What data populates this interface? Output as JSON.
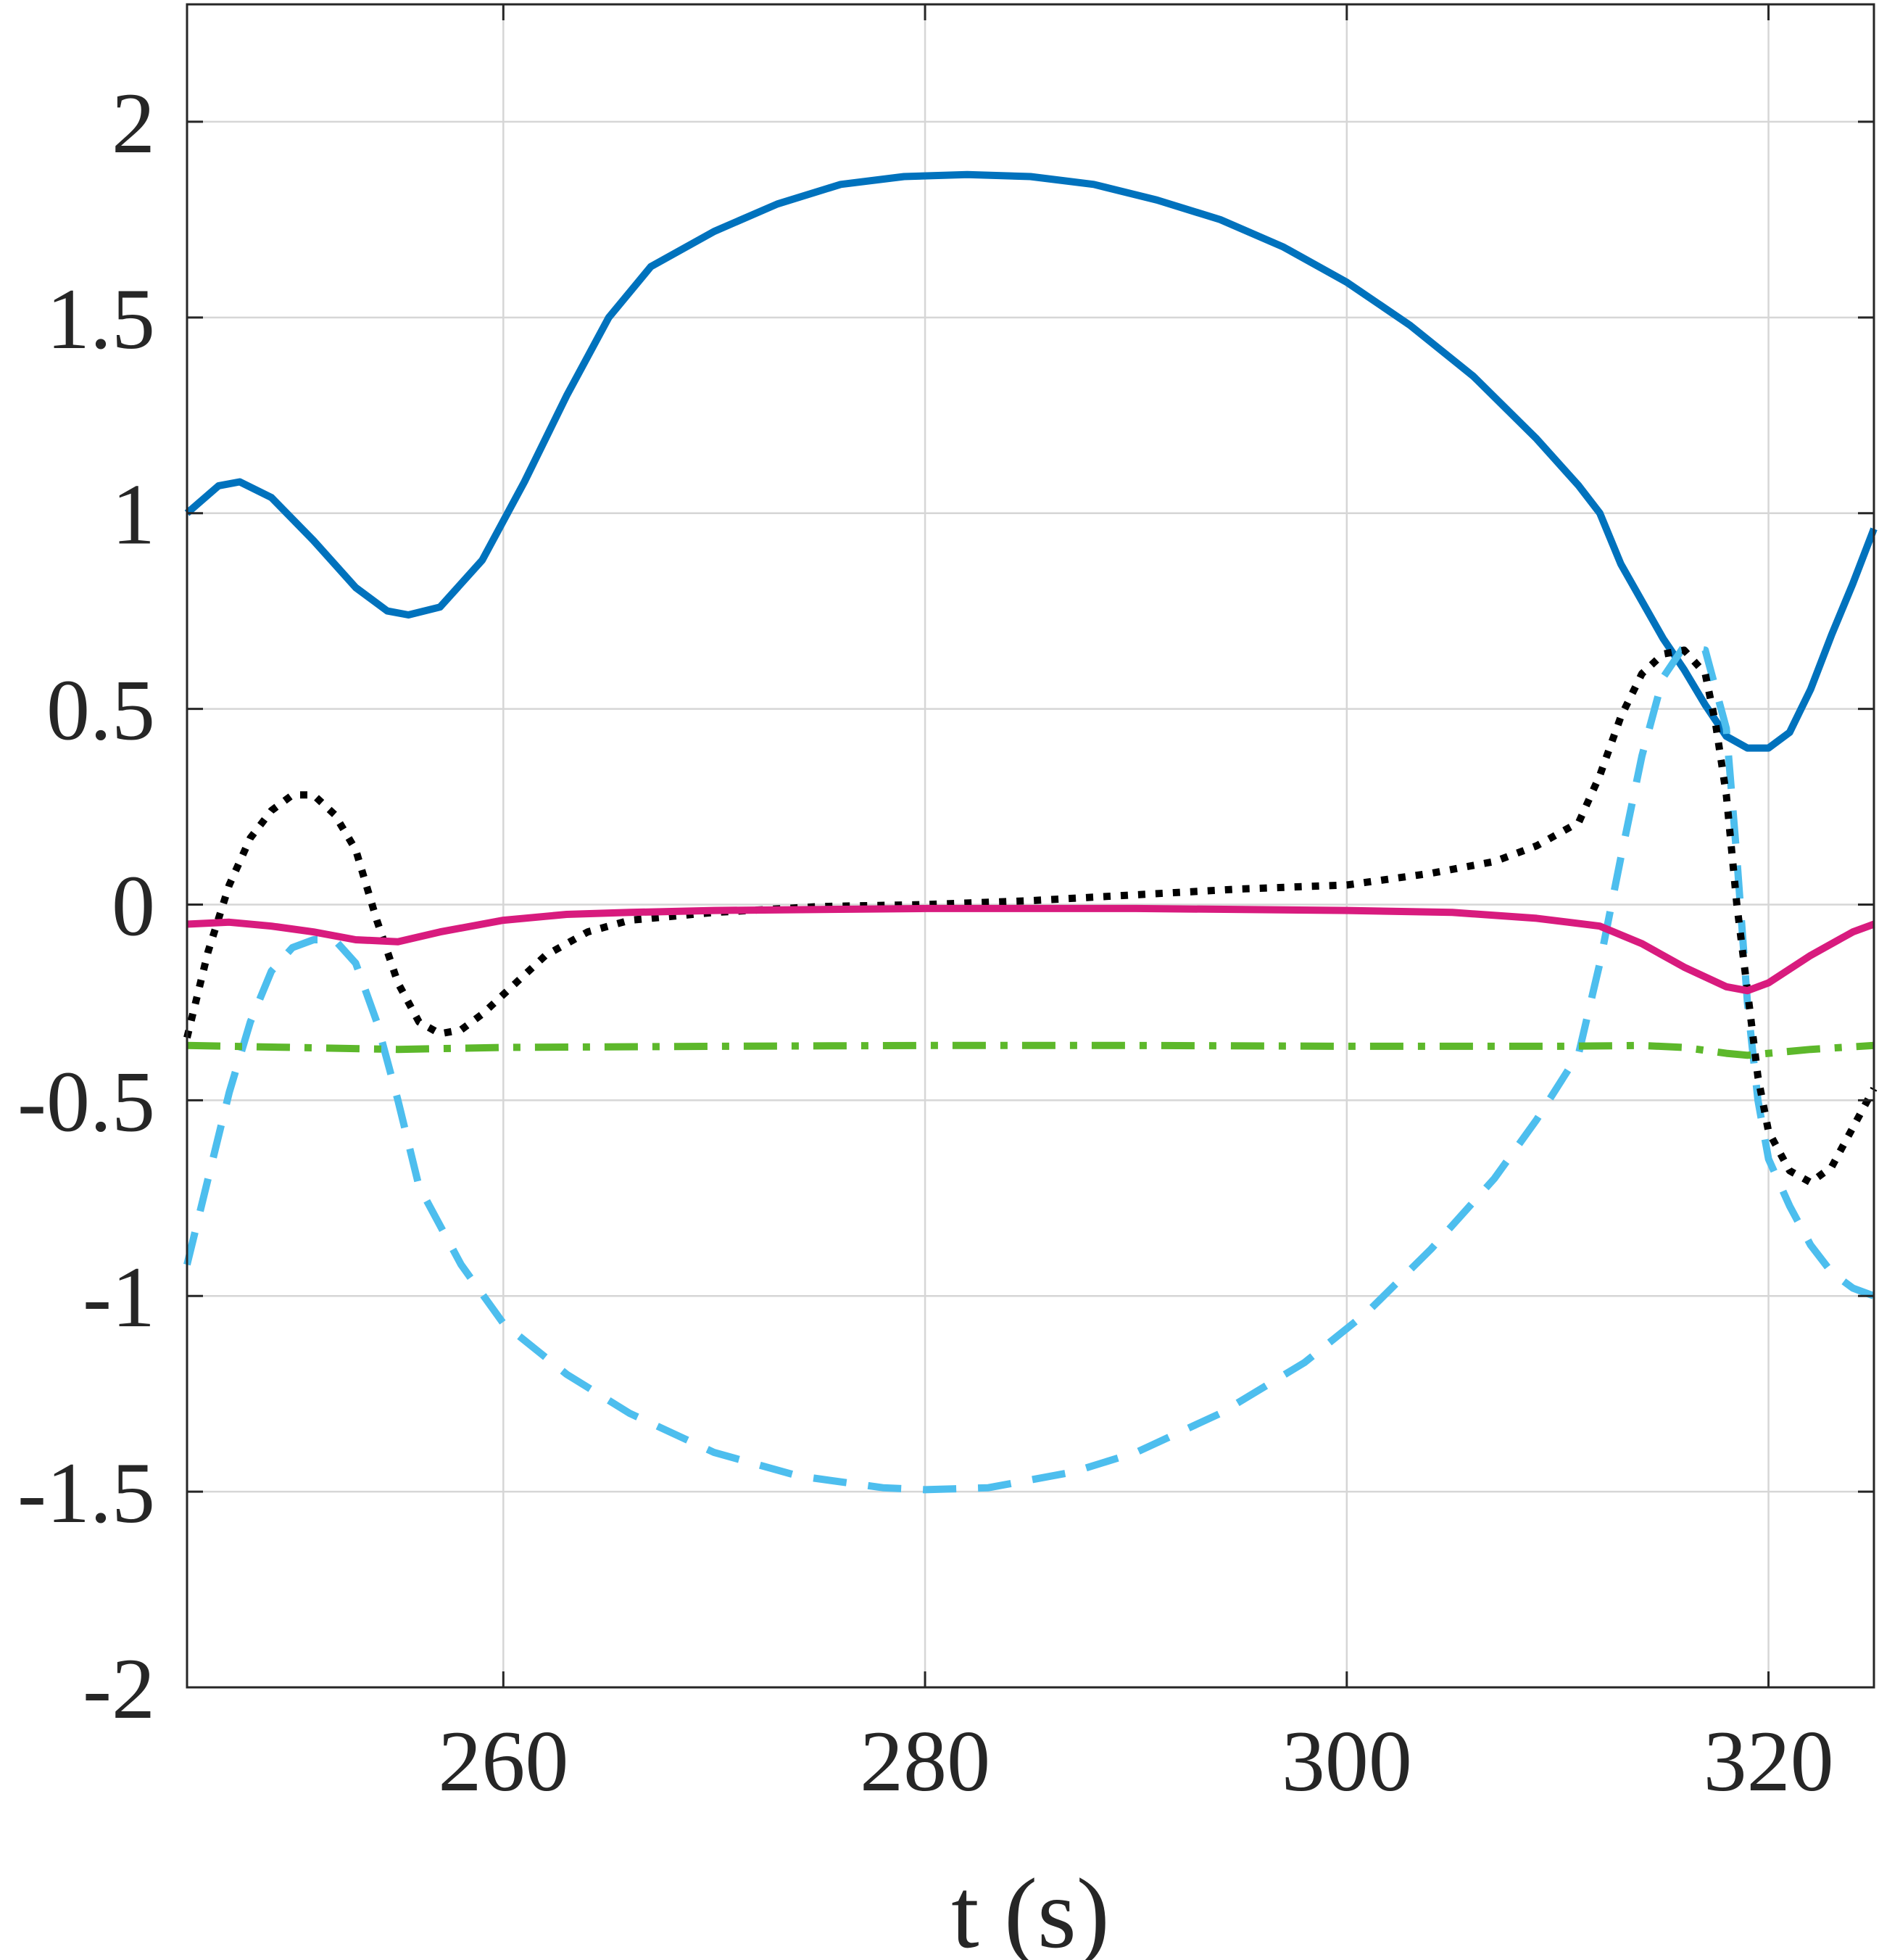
{
  "chart_data": {
    "type": "line",
    "title": "",
    "xlabel": "t (s)",
    "ylabel": "",
    "xlim": [
      245,
      325
    ],
    "ylim": [
      -2,
      2.3
    ],
    "xticks": [
      260,
      280,
      300,
      320
    ],
    "xtick_labels": [
      "260",
      "280",
      "300",
      "320"
    ],
    "yticks": [
      2,
      1.5,
      1,
      0.5,
      0,
      -0.5,
      -1,
      -1.5,
      -2
    ],
    "ytick_labels": [
      "2",
      "1.5",
      "1",
      "0.5",
      "0",
      "-0.5",
      "-1",
      "-1.5",
      "-2"
    ],
    "grid": true,
    "legend": "none",
    "series": [
      {
        "color": "#0072BD",
        "style": "solid",
        "points": [
          [
            245,
            1.0
          ],
          [
            246.5,
            1.07
          ],
          [
            247.5,
            1.08
          ],
          [
            249,
            1.04
          ],
          [
            251,
            0.93
          ],
          [
            253,
            0.81
          ],
          [
            254.5,
            0.75
          ],
          [
            255.5,
            0.74
          ],
          [
            257,
            0.76
          ],
          [
            259,
            0.88
          ],
          [
            261,
            1.08
          ],
          [
            263,
            1.3
          ],
          [
            265,
            1.5
          ],
          [
            267,
            1.63
          ],
          [
            270,
            1.72
          ],
          [
            273,
            1.79
          ],
          [
            276,
            1.84
          ],
          [
            279,
            1.86
          ],
          [
            282,
            1.865
          ],
          [
            285,
            1.86
          ],
          [
            288,
            1.84
          ],
          [
            291,
            1.8
          ],
          [
            294,
            1.75
          ],
          [
            297,
            1.68
          ],
          [
            300,
            1.59
          ],
          [
            303,
            1.48
          ],
          [
            306,
            1.35
          ],
          [
            309,
            1.19
          ],
          [
            311,
            1.07
          ],
          [
            312,
            1.0
          ],
          [
            313,
            0.87
          ],
          [
            315,
            0.68
          ],
          [
            316,
            0.6
          ],
          [
            317,
            0.51
          ],
          [
            318,
            0.43
          ],
          [
            319,
            0.4
          ],
          [
            320,
            0.4
          ],
          [
            321,
            0.44
          ],
          [
            322,
            0.55
          ],
          [
            323,
            0.69
          ],
          [
            324,
            0.82
          ],
          [
            325,
            0.96
          ]
        ]
      },
      {
        "color": "#4DBEEE",
        "style": "dashed",
        "points": [
          [
            245,
            -0.92
          ],
          [
            246,
            -0.7
          ],
          [
            247,
            -0.48
          ],
          [
            248,
            -0.3
          ],
          [
            249,
            -0.17
          ],
          [
            250,
            -0.11
          ],
          [
            251,
            -0.09
          ],
          [
            252,
            -0.09
          ],
          [
            253,
            -0.15
          ],
          [
            254,
            -0.3
          ],
          [
            255,
            -0.5
          ],
          [
            256,
            -0.72
          ],
          [
            258,
            -0.92
          ],
          [
            260,
            -1.07
          ],
          [
            263,
            -1.2
          ],
          [
            266,
            -1.3
          ],
          [
            270,
            -1.4
          ],
          [
            274,
            -1.46
          ],
          [
            278,
            -1.49
          ],
          [
            280,
            -1.495
          ],
          [
            283,
            -1.49
          ],
          [
            287,
            -1.45
          ],
          [
            290,
            -1.4
          ],
          [
            294,
            -1.3
          ],
          [
            298,
            -1.17
          ],
          [
            301,
            -1.04
          ],
          [
            304,
            -0.88
          ],
          [
            307,
            -0.7
          ],
          [
            309,
            -0.55
          ],
          [
            311,
            -0.38
          ],
          [
            312,
            -0.15
          ],
          [
            313,
            0.12
          ],
          [
            314,
            0.38
          ],
          [
            315,
            0.58
          ],
          [
            316,
            0.66
          ],
          [
            317,
            0.65
          ],
          [
            318,
            0.45
          ],
          [
            318.5,
            0.12
          ],
          [
            319,
            -0.25
          ],
          [
            319.5,
            -0.5
          ],
          [
            320,
            -0.65
          ],
          [
            321,
            -0.77
          ],
          [
            322,
            -0.87
          ],
          [
            323,
            -0.94
          ],
          [
            324,
            -0.98
          ],
          [
            325,
            -1.0
          ]
        ]
      },
      {
        "color": "#000000",
        "style": "dotted",
        "points": [
          [
            245,
            -0.34
          ],
          [
            246,
            -0.12
          ],
          [
            247,
            0.05
          ],
          [
            248,
            0.17
          ],
          [
            249,
            0.24
          ],
          [
            250,
            0.28
          ],
          [
            251,
            0.28
          ],
          [
            252,
            0.23
          ],
          [
            253,
            0.14
          ],
          [
            254,
            -0.04
          ],
          [
            255,
            -0.2
          ],
          [
            256,
            -0.3
          ],
          [
            257,
            -0.33
          ],
          [
            258,
            -0.32
          ],
          [
            259,
            -0.28
          ],
          [
            260,
            -0.23
          ],
          [
            262,
            -0.13
          ],
          [
            264,
            -0.07
          ],
          [
            266,
            -0.04
          ],
          [
            270,
            -0.02
          ],
          [
            275,
            -0.005
          ],
          [
            280,
            0.0
          ],
          [
            285,
            0.01
          ],
          [
            290,
            0.025
          ],
          [
            295,
            0.04
          ],
          [
            300,
            0.05
          ],
          [
            304,
            0.08
          ],
          [
            307,
            0.11
          ],
          [
            309,
            0.15
          ],
          [
            311,
            0.21
          ],
          [
            312,
            0.33
          ],
          [
            313,
            0.48
          ],
          [
            314,
            0.59
          ],
          [
            315,
            0.64
          ],
          [
            316,
            0.65
          ],
          [
            317,
            0.59
          ],
          [
            317.5,
            0.46
          ],
          [
            318,
            0.28
          ],
          [
            318.5,
            0.0
          ],
          [
            319,
            -0.22
          ],
          [
            319.5,
            -0.44
          ],
          [
            320,
            -0.58
          ],
          [
            321,
            -0.68
          ],
          [
            322,
            -0.71
          ],
          [
            323,
            -0.67
          ],
          [
            324,
            -0.57
          ],
          [
            325,
            -0.47
          ]
        ]
      },
      {
        "color": "#D81B7E",
        "style": "solid",
        "points": [
          [
            245,
            -0.05
          ],
          [
            247,
            -0.045
          ],
          [
            249,
            -0.055
          ],
          [
            251,
            -0.07
          ],
          [
            253,
            -0.09
          ],
          [
            255,
            -0.095
          ],
          [
            257,
            -0.07
          ],
          [
            260,
            -0.04
          ],
          [
            263,
            -0.025
          ],
          [
            266,
            -0.02
          ],
          [
            270,
            -0.015
          ],
          [
            280,
            -0.01
          ],
          [
            290,
            -0.01
          ],
          [
            300,
            -0.015
          ],
          [
            305,
            -0.02
          ],
          [
            309,
            -0.035
          ],
          [
            312,
            -0.055
          ],
          [
            314,
            -0.1
          ],
          [
            316,
            -0.16
          ],
          [
            318,
            -0.21
          ],
          [
            319,
            -0.22
          ],
          [
            320,
            -0.2
          ],
          [
            322,
            -0.13
          ],
          [
            324,
            -0.07
          ],
          [
            325,
            -0.05
          ]
        ]
      },
      {
        "color": "#5DB82B",
        "style": "dashdot",
        "points": [
          [
            245,
            -0.36
          ],
          [
            250,
            -0.365
          ],
          [
            255,
            -0.37
          ],
          [
            260,
            -0.365
          ],
          [
            270,
            -0.362
          ],
          [
            280,
            -0.36
          ],
          [
            290,
            -0.36
          ],
          [
            300,
            -0.362
          ],
          [
            310,
            -0.362
          ],
          [
            314,
            -0.36
          ],
          [
            316,
            -0.365
          ],
          [
            318,
            -0.38
          ],
          [
            319,
            -0.385
          ],
          [
            320,
            -0.38
          ],
          [
            322,
            -0.37
          ],
          [
            325,
            -0.36
          ]
        ]
      }
    ]
  }
}
